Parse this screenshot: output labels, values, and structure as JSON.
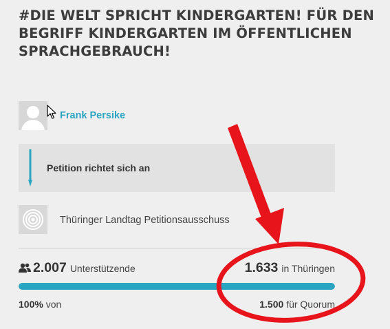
{
  "petition": {
    "title": "#DIE WELT SPRICHT KINDERGARTEN! FÜR DEN BEGRIFF KINDERGARTEN IM ÖFFENTLICHEN SPRACHGEBRAUCH!",
    "author_name": "Frank Persike",
    "recipient_label": "Petition richtet sich an",
    "recipient_org": "Thüringer Landtag Petitionsausschuss"
  },
  "stats": {
    "supporters_count": "2.007",
    "supporters_label": "Unterstützende",
    "state_count": "1.633",
    "state_label": "in Thüringen",
    "progress_fraction": 1.0,
    "percent_value": "100%",
    "percent_suffix": "von",
    "quorum_count": "1.500",
    "quorum_label": "für Quorum"
  },
  "colors": {
    "accent": "#2aa5c1",
    "annotation_red": "#e8141b"
  },
  "icons": {
    "avatar": "user-silhouette-icon",
    "recipient_arrow": "arrow-down-icon",
    "org_logo": "concentric-circles-icon",
    "supporters": "people-icon",
    "cursor": "mouse-pointer-icon"
  }
}
